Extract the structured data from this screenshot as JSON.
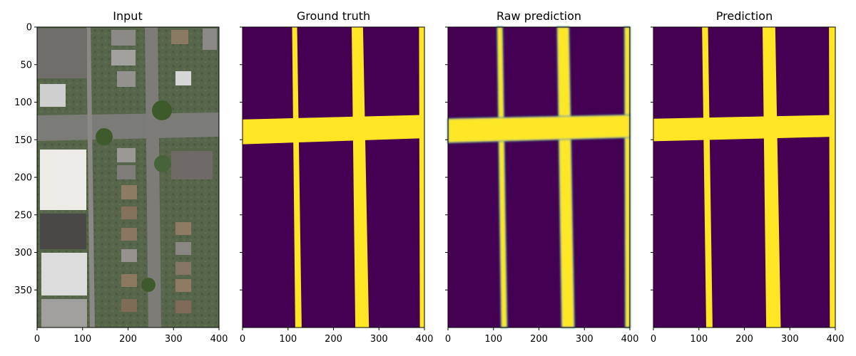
{
  "chart_data": {
    "type": "heatmap",
    "x_ticks": [
      "0",
      "100",
      "200",
      "300",
      "400"
    ],
    "y_ticks": [
      "0",
      "50",
      "100",
      "150",
      "200",
      "250",
      "300",
      "350"
    ],
    "xlim": [
      0,
      400
    ],
    "ylim": [
      400,
      0
    ],
    "colormap": {
      "low": "#440154",
      "high": "#fde725",
      "mid": "#21918c"
    },
    "panels": [
      {
        "title": "Input",
        "kind": "aerial-photo",
        "y_tick_labels_shown": true
      },
      {
        "title": "Ground truth",
        "kind": "mask",
        "y_tick_labels_shown": false,
        "roads": [
          {
            "orientation": "vertical",
            "x_top": [
              109,
              120
            ],
            "x_bottom": [
              116,
              130
            ]
          },
          {
            "orientation": "vertical",
            "x_top": [
              240,
              265
            ],
            "x_bottom": [
              248,
              278
            ]
          },
          {
            "orientation": "vertical",
            "x_top": [
              388,
              400
            ],
            "x_bottom": [
              390,
              400
            ]
          },
          {
            "orientation": "horizontal",
            "y_left": [
              123,
              156
            ],
            "y_right": [
              117,
              148
            ]
          }
        ]
      },
      {
        "title": "Raw prediction",
        "kind": "probability",
        "y_tick_labels_shown": false,
        "roads": [
          {
            "orientation": "vertical",
            "x_top": [
              108,
              120
            ],
            "x_bottom": [
              117,
              130
            ]
          },
          {
            "orientation": "vertical",
            "x_top": [
              240,
              266
            ],
            "x_bottom": [
              250,
              278
            ]
          },
          {
            "orientation": "vertical",
            "x_top": [
              388,
              400
            ],
            "x_bottom": [
              390,
              400
            ]
          },
          {
            "orientation": "horizontal",
            "y_left": [
              122,
              154
            ],
            "y_right": [
              117,
              147
            ]
          }
        ]
      },
      {
        "title": "Prediction",
        "kind": "mask",
        "y_tick_labels_shown": false,
        "roads": [
          {
            "orientation": "vertical",
            "x_top": [
              107,
              120
            ],
            "x_bottom": [
              116,
              130
            ]
          },
          {
            "orientation": "vertical",
            "x_top": [
              240,
              268
            ],
            "x_bottom": [
              248,
              280
            ]
          },
          {
            "orientation": "vertical",
            "x_top": [
              386,
              400
            ],
            "x_bottom": [
              388,
              400
            ]
          },
          {
            "orientation": "horizontal",
            "y_left": [
              122,
              152
            ],
            "y_right": [
              117,
              146
            ]
          }
        ]
      }
    ]
  }
}
